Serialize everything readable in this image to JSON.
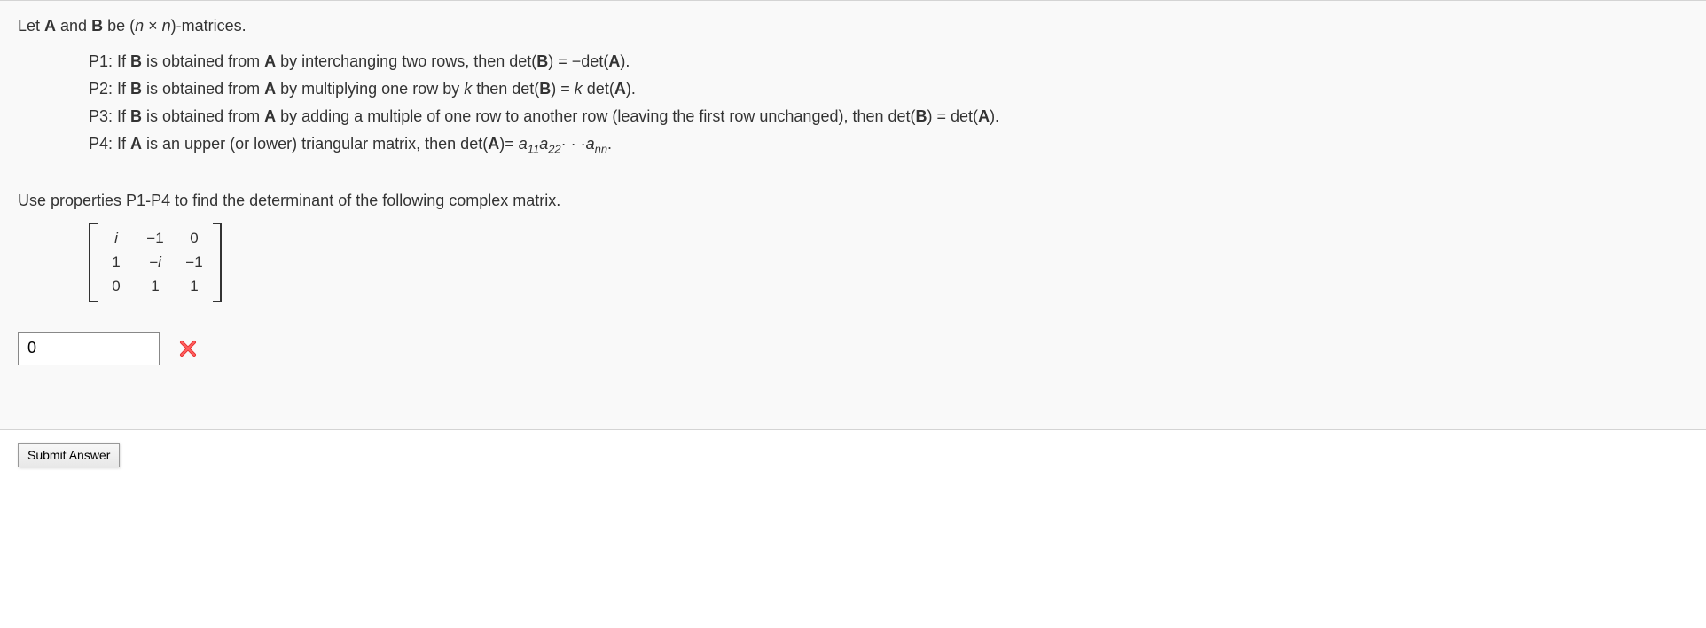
{
  "intro": {
    "prefix": "Let ",
    "A": "A",
    "and": " and ",
    "B": "B",
    "suffix1": " be (",
    "n1": "n",
    "times": " × ",
    "n2": "n",
    "suffix2": ")-matrices."
  },
  "properties": {
    "p1": {
      "label": "P1: If ",
      "B1": "B",
      "t1": " is obtained from ",
      "A1": "A",
      "t2": " by interchanging two rows, then  det(",
      "B2": "B",
      "t3": ") = −det(",
      "A2": "A",
      "t4": ")."
    },
    "p2": {
      "label": "P2: If ",
      "B1": "B",
      "t1": " is obtained from ",
      "A1": "A",
      "t2": " by multiplying one row by ",
      "k": "k",
      "t3": " then  det(",
      "B2": "B",
      "t4": ") = ",
      "k2": "k",
      "t5": " det(",
      "A2": "A",
      "t6": ")."
    },
    "p3": {
      "label": "P3: If ",
      "B1": "B",
      "t1": " is obtained from ",
      "A1": "A",
      "t2": " by adding a multiple of one row to another row (leaving the first row unchanged), then  det(",
      "B2": "B",
      "t3": ") = det(",
      "A2": "A",
      "t4": ")."
    },
    "p4": {
      "label": "P4: If ",
      "A1": "A",
      "t1": " is an upper (or lower) triangular matrix, then  det(",
      "A2": "A",
      "t2": ")= ",
      "a": "a",
      "s11": "11",
      "a2": "a",
      "s22": "22",
      "dots": "· · ·",
      "a3": "a",
      "snn": "nn",
      "t3": "."
    }
  },
  "instruction": "Use properties P1-P4 to find the determinant of the following complex matrix.",
  "matrix": {
    "rows": [
      [
        "i",
        "−1",
        "0"
      ],
      [
        "1",
        "−i",
        "−1"
      ],
      [
        "0",
        "1",
        "1"
      ]
    ],
    "italic_cells": [
      [
        0,
        0
      ],
      [
        1,
        1
      ]
    ]
  },
  "answer": {
    "value": "0",
    "correct": false,
    "feedback_color": "#e83030"
  },
  "submit_label": "Submit Answer",
  "colors": {
    "text": "#333333",
    "border": "#d4d4d4",
    "background": "#f9f9f9"
  }
}
